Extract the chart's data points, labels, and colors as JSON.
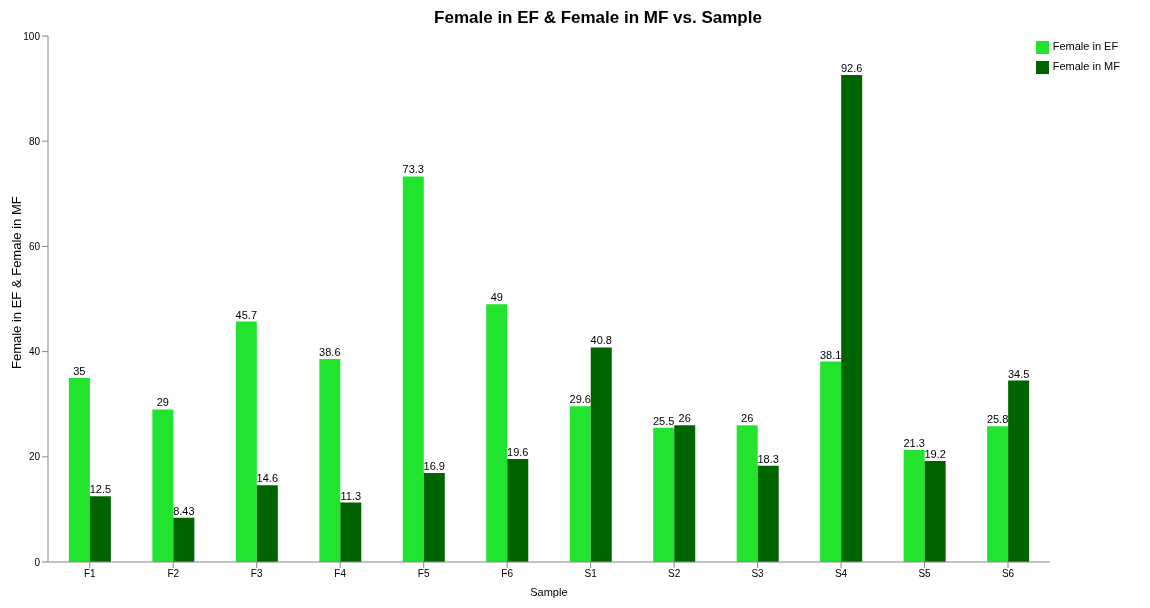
{
  "chart_data": {
    "type": "bar",
    "title": "Female in EF & Female in MF vs. Sample",
    "xlabel": "Sample",
    "ylabel": "Female in EF & Female in MF",
    "categories": [
      "F1",
      "F2",
      "F3",
      "F4",
      "F5",
      "F6",
      "S1",
      "S2",
      "S3",
      "S4",
      "S5",
      "S6"
    ],
    "series": [
      {
        "name": "Female in EF",
        "color": "#22e32e",
        "values": [
          35,
          29,
          45.7,
          38.6,
          73.3,
          49,
          29.6,
          25.5,
          26,
          38.1,
          21.3,
          25.8
        ]
      },
      {
        "name": "Female in MF",
        "color": "#006400",
        "values": [
          12.5,
          8.43,
          14.6,
          11.3,
          16.9,
          19.6,
          40.8,
          26,
          18.3,
          92.6,
          19.2,
          34.5
        ]
      }
    ],
    "ylim": [
      0,
      100
    ],
    "yticks": [
      0,
      20,
      40,
      60,
      80,
      100
    ],
    "grid": false,
    "legend": "top right",
    "data_labels": true
  }
}
